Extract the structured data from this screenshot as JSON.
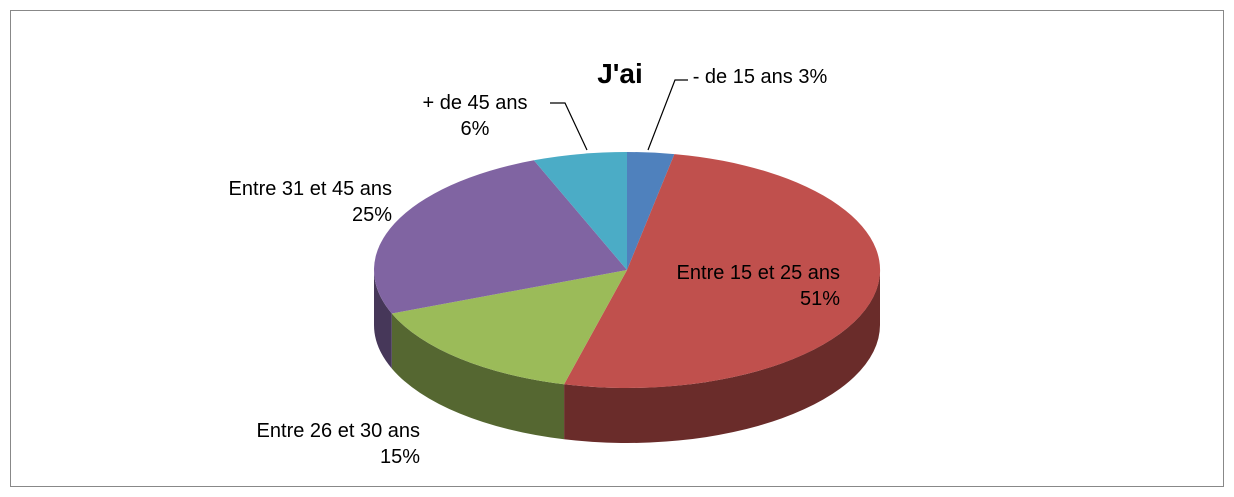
{
  "chart_data": {
    "type": "pie",
    "title": "J'ai",
    "categories": [
      "- de 15 ans",
      "Entre 15 et 25 ans",
      "Entre 26 et 30 ans",
      "Entre 31 et 45 ans",
      "+ de 45 ans"
    ],
    "values": [
      3,
      51,
      15,
      25,
      6
    ],
    "value_labels": [
      "3%",
      "51%",
      "15%",
      "25%",
      "6%"
    ],
    "colors": [
      "#4f81bd",
      "#c0504d",
      "#9bbb59",
      "#8064a2",
      "#4bacc6"
    ]
  }
}
